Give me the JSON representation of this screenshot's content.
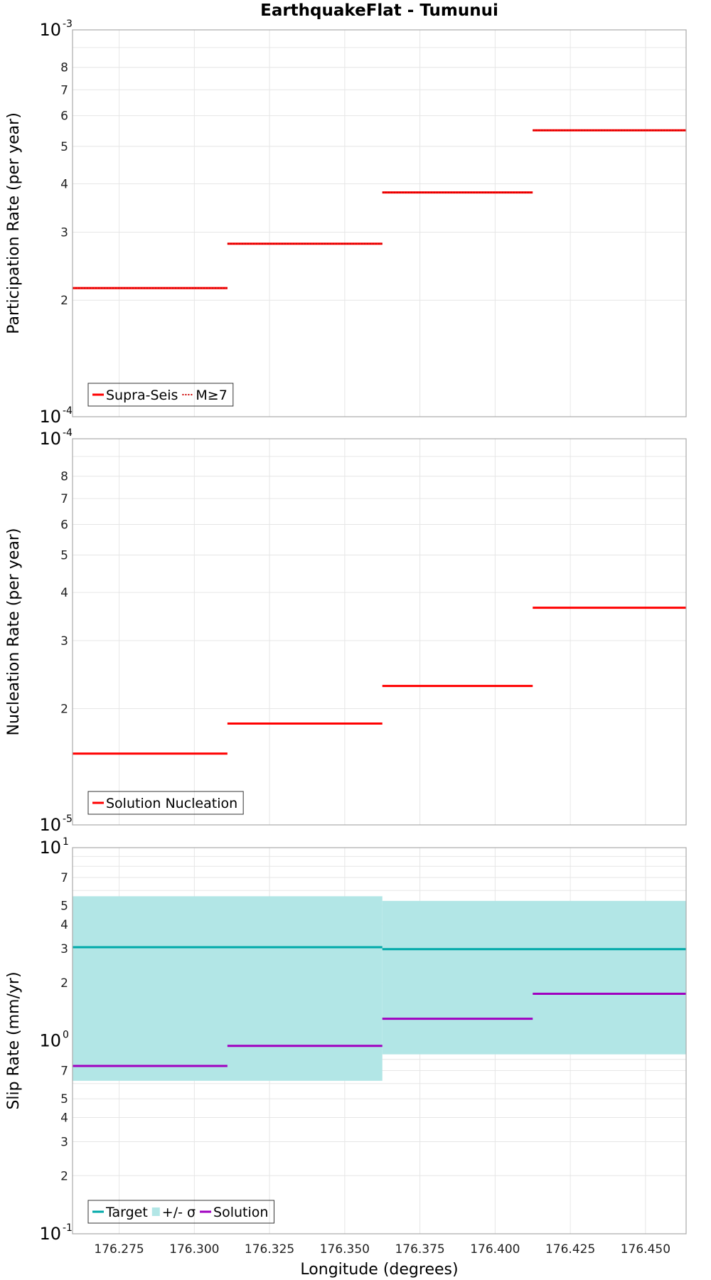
{
  "chart_data": [
    {
      "type": "line",
      "title": "EarthquakeFlat - Tumunui",
      "ylabel": "Participation Rate (per year)",
      "xlabel": "",
      "xlim": [
        176.2595,
        176.4635
      ],
      "ylim": [
        0.0001,
        0.001
      ],
      "yscale": "log",
      "x_ticks": [
        "176.275",
        "176.300",
        "176.325",
        "176.350",
        "176.375",
        "176.400",
        "176.425",
        "176.450"
      ],
      "y_minor_ticks": [
        "2",
        "3",
        "4",
        "5",
        "6",
        "7",
        "8"
      ],
      "y_major": [
        {
          "base": "10",
          "exp": "-4"
        },
        {
          "base": "10",
          "exp": "-3"
        }
      ],
      "legend": [
        "Supra-Seis",
        "M≥7"
      ],
      "series": [
        {
          "name": "Supra-Seis",
          "color": "#ff0000",
          "style": "solid",
          "segments": [
            [
              176.2595,
              176.311,
              0.000215
            ],
            [
              176.311,
              176.3625,
              0.00028
            ],
            [
              176.3625,
              176.4125,
              0.00038
            ],
            [
              176.4125,
              176.4635,
              0.00055
            ]
          ]
        },
        {
          "name": "M≥7",
          "color": "#ff0000",
          "style": "dotted",
          "segments": [
            [
              176.2595,
              176.311,
              0.000215
            ],
            [
              176.311,
              176.3625,
              0.00028
            ],
            [
              176.3625,
              176.4125,
              0.00038
            ],
            [
              176.4125,
              176.4635,
              0.00055
            ]
          ]
        }
      ]
    },
    {
      "type": "line",
      "title": "",
      "ylabel": "Nucleation Rate (per year)",
      "xlabel": "",
      "xlim": [
        176.2595,
        176.4635
      ],
      "ylim": [
        1e-05,
        0.0001
      ],
      "yscale": "log",
      "x_ticks": [
        "176.275",
        "176.300",
        "176.325",
        "176.350",
        "176.375",
        "176.400",
        "176.425",
        "176.450"
      ],
      "y_minor_ticks": [
        "2",
        "3",
        "4",
        "5",
        "6",
        "7",
        "8"
      ],
      "y_major": [
        {
          "base": "10",
          "exp": "-5"
        },
        {
          "base": "10",
          "exp": "-4"
        }
      ],
      "legend": [
        "Solution Nucleation"
      ],
      "series": [
        {
          "name": "Solution Nucleation",
          "color": "#ff0000",
          "style": "solid",
          "segments": [
            [
              176.2595,
              176.311,
              1.53e-05
            ],
            [
              176.311,
              176.3625,
              1.83e-05
            ],
            [
              176.3625,
              176.4125,
              2.29e-05
            ],
            [
              176.4125,
              176.4635,
              3.65e-05
            ]
          ]
        }
      ]
    },
    {
      "type": "line",
      "title": "",
      "ylabel": "Slip Rate (mm/yr)",
      "xlabel": "Longitude (degrees)",
      "xlim": [
        176.2595,
        176.4635
      ],
      "ylim": [
        0.1,
        10
      ],
      "yscale": "log",
      "x_ticks": [
        "176.275",
        "176.300",
        "176.325",
        "176.350",
        "176.375",
        "176.400",
        "176.425",
        "176.450"
      ],
      "y_minor_ticks": [
        "2",
        "3",
        "4",
        "5",
        "7",
        "2",
        "3",
        "4",
        "5",
        "7"
      ],
      "y_major": [
        {
          "base": "10",
          "exp": "-1"
        },
        {
          "base": "10",
          "exp": "0"
        },
        {
          "base": "10",
          "exp": "1"
        }
      ],
      "legend": [
        "Target",
        "+/- σ",
        "Solution"
      ],
      "bands": [
        {
          "name": "+/- σ",
          "color": "#b2e6e6",
          "segments": [
            [
              176.2595,
              176.3625,
              0.62,
              5.6
            ],
            [
              176.3625,
              176.4635,
              0.85,
              5.3
            ]
          ]
        }
      ],
      "series": [
        {
          "name": "Target",
          "color": "#00a9a9",
          "style": "solid",
          "segments": [
            [
              176.2595,
              176.3625,
              3.05
            ],
            [
              176.3625,
              176.4635,
              2.98
            ]
          ]
        },
        {
          "name": "Solution",
          "color": "#a000c0",
          "style": "solid",
          "segments": [
            [
              176.2595,
              176.311,
              0.74
            ],
            [
              176.311,
              176.3625,
              0.94
            ],
            [
              176.3625,
              176.4125,
              1.3
            ],
            [
              176.4125,
              176.4635,
              1.75
            ]
          ]
        }
      ]
    }
  ]
}
